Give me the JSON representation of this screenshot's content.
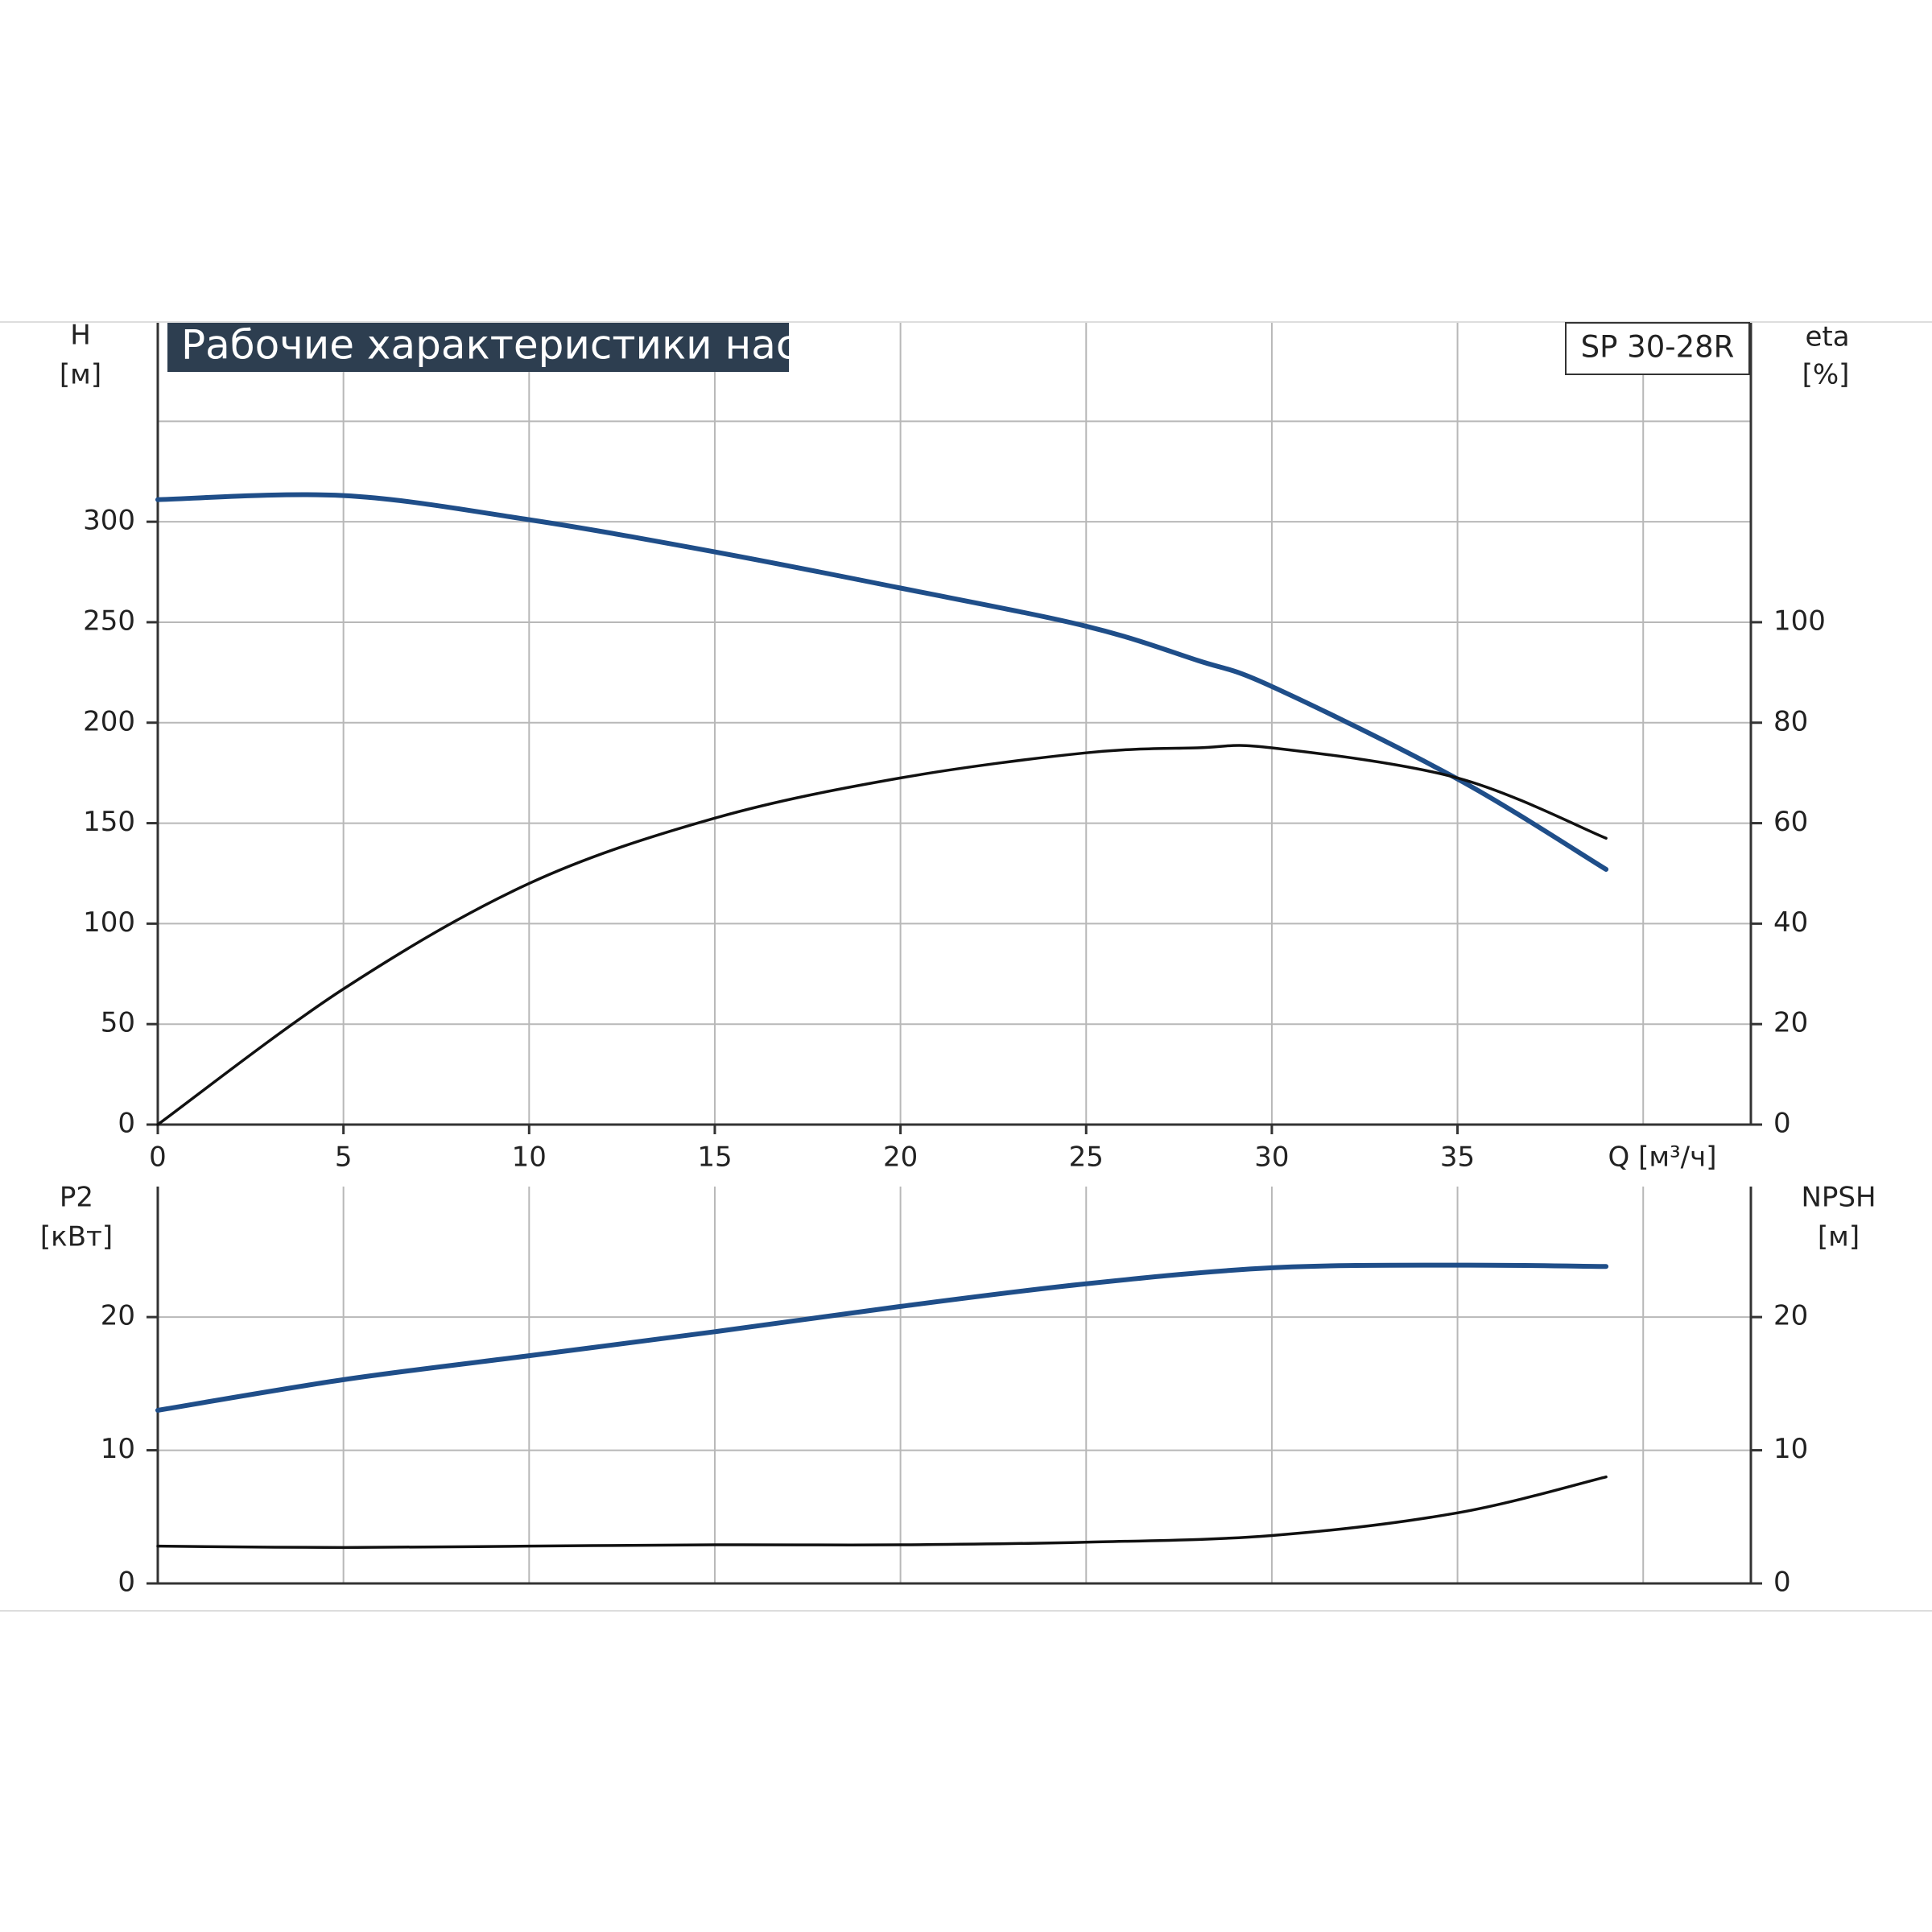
{
  "chart_data": [
    {
      "type": "line",
      "title": "Рабочие характеристики насоса",
      "annotation": "SP 30-28R",
      "ylabel": "H",
      "yunit": "[м]",
      "y2label": "eta",
      "y2unit": "[%]",
      "xlabel": "Q [м³/ч]",
      "x": [
        0,
        5,
        10,
        15,
        20,
        25,
        28,
        30,
        35,
        39
      ],
      "series": [
        {
          "name": "H",
          "color": "#1f4e89",
          "values": [
            311,
            313,
            301,
            285,
            267,
            248,
            231,
            218,
            172,
            127
          ]
        },
        {
          "name": "eta",
          "color": "#111111",
          "axis": "y2",
          "values": [
            0,
            27,
            48,
            61,
            69,
            74,
            75,
            75,
            69,
            57
          ]
        }
      ],
      "xlim": [
        0,
        42.9
      ],
      "xticks": [
        0,
        5,
        10,
        15,
        20,
        25,
        30,
        35
      ],
      "xgrid": [
        5,
        10,
        15,
        20,
        25,
        30,
        35,
        40
      ],
      "ylim": [
        0,
        399
      ],
      "yticks": [
        0,
        50,
        100,
        150,
        200,
        250,
        300
      ],
      "ygrid": [
        50,
        100,
        150,
        200,
        250,
        300,
        350
      ],
      "y2lim": [
        0,
        159.6
      ],
      "y2ticks": [
        0,
        20,
        40,
        60,
        80,
        100
      ],
      "grid": true
    },
    {
      "type": "line",
      "ylabel": "P2",
      "yunit": "[кВт]",
      "y2label": "NPSH",
      "y2unit": "[м]",
      "x": [
        0,
        5,
        10,
        15,
        20,
        25,
        30,
        35,
        39
      ],
      "series": [
        {
          "name": "P2",
          "color": "#1f4e89",
          "values": [
            13,
            15.3,
            17.1,
            18.9,
            20.8,
            22.5,
            23.7,
            23.9,
            23.8
          ]
        },
        {
          "name": "NPSH",
          "color": "#111111",
          "axis": "y2",
          "values": [
            2.8,
            2.7,
            2.8,
            2.9,
            2.9,
            3.1,
            3.6,
            5.3,
            8.0
          ]
        }
      ],
      "xlim": [
        0,
        42.9
      ],
      "xgrid": [
        5,
        10,
        15,
        20,
        25,
        30,
        35,
        40
      ],
      "ylim": [
        0,
        29.8
      ],
      "yticks": [
        0,
        10,
        20
      ],
      "ygrid": [
        10,
        20
      ],
      "y2lim": [
        0,
        29.8
      ],
      "y2ticks": [
        0,
        10,
        20
      ],
      "grid": true
    }
  ]
}
